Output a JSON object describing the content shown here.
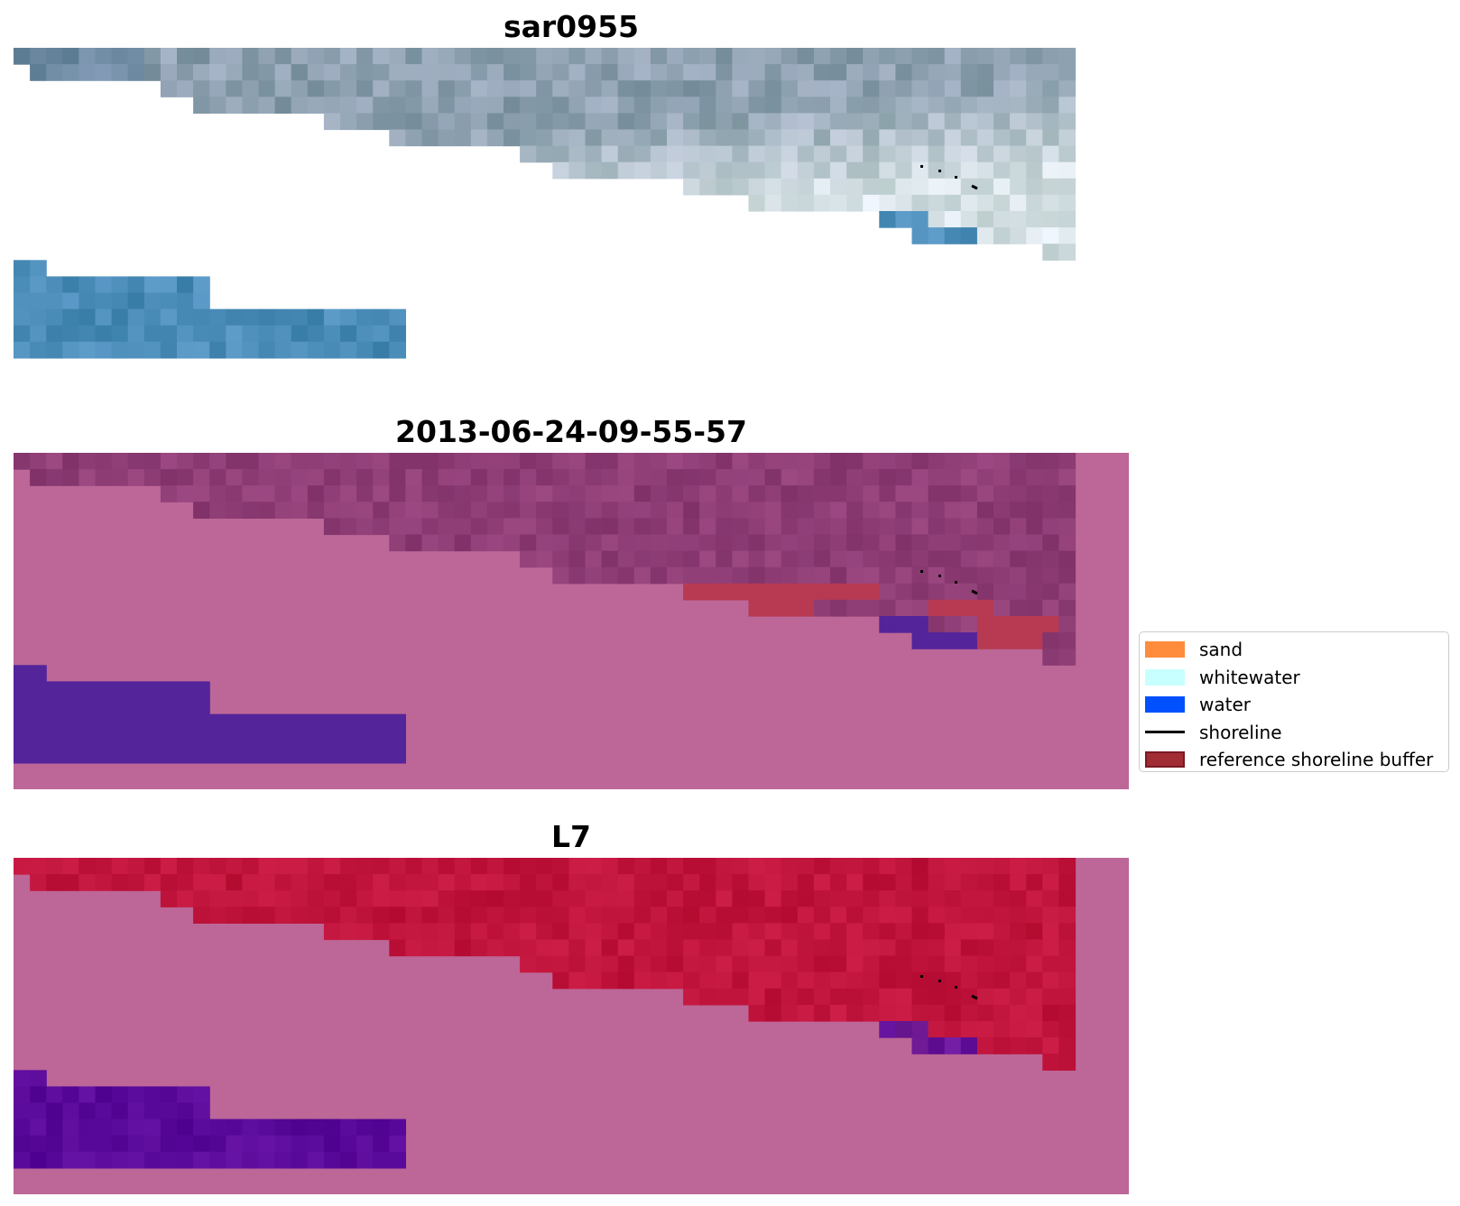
{
  "panels": {
    "rgb": {
      "title": "sar0955"
    },
    "classification": {
      "title": "2013-06-24-09-55-57"
    },
    "mndwi": {
      "title": "L7"
    }
  },
  "legend": {
    "items": [
      {
        "label": "sand",
        "kind": "patch",
        "color": "#ff8c3c"
      },
      {
        "label": "whitewater",
        "kind": "patch",
        "color": "#c8ffff"
      },
      {
        "label": "water",
        "kind": "patch",
        "color": "#0050ff"
      },
      {
        "label": "shoreline",
        "kind": "line",
        "color": "#000000"
      },
      {
        "label": "reference shoreline buffer",
        "kind": "patch",
        "color": "#a22c34",
        "edge": "#7a1a22"
      }
    ]
  },
  "colors": {
    "background_pink": "#bc6797",
    "class_land": "#8e3d75",
    "class_water": "#53249a",
    "buffer": "#b73a52",
    "mndwi_land": "#c0143c",
    "mndwi_water": "#5a0a9a",
    "rgb_land": "#8da0b0",
    "rgb_water": "#4a8cb8",
    "rgb_white": "#dfe9ec"
  }
}
